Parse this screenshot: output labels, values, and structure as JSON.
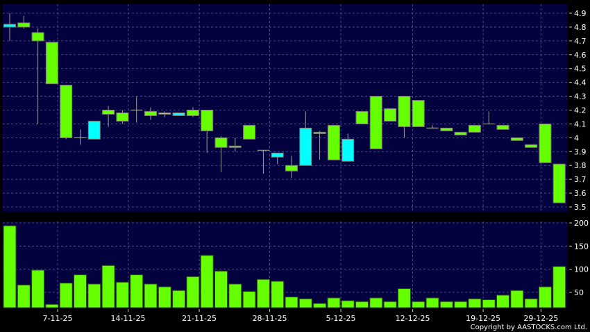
{
  "chart_data": [
    {
      "type": "candlestick",
      "ylim": [
        3.5,
        4.9
      ],
      "yticks": [
        3.5,
        3.6,
        3.7,
        3.8,
        3.9,
        4,
        4.1,
        4.2,
        4.3,
        4.4,
        4.5,
        4.6,
        4.7,
        4.8,
        4.9
      ],
      "grid": true,
      "colors": {
        "up": "#00ffff",
        "down": "#66ff00",
        "background": "#03023f",
        "wick": "#a0a0a0"
      },
      "ohlc": [
        [
          4.8,
          4.9,
          4.7,
          4.82
        ],
        [
          4.83,
          4.88,
          4.79,
          4.8
        ],
        [
          4.76,
          4.79,
          4.1,
          4.7
        ],
        [
          4.69,
          4.69,
          4.39,
          4.39
        ],
        [
          4.38,
          4.38,
          3.99,
          4.0
        ],
        [
          4.0,
          4.06,
          3.95,
          4.0
        ],
        [
          3.99,
          4.12,
          3.99,
          4.12
        ],
        [
          4.2,
          4.23,
          4.08,
          4.17
        ],
        [
          4.18,
          4.2,
          4.1,
          4.12
        ],
        [
          4.2,
          4.3,
          4.11,
          4.2
        ],
        [
          4.19,
          4.22,
          4.13,
          4.16
        ],
        [
          4.18,
          4.19,
          4.15,
          4.17
        ],
        [
          4.16,
          4.18,
          4.16,
          4.18
        ],
        [
          4.2,
          4.22,
          4.15,
          4.16
        ],
        [
          4.2,
          4.2,
          3.89,
          4.05
        ],
        [
          4.0,
          4.01,
          3.75,
          3.93
        ],
        [
          3.94,
          4.0,
          3.9,
          3.93
        ],
        [
          4.09,
          4.09,
          3.99,
          3.99
        ],
        [
          3.91,
          3.91,
          3.74,
          3.91
        ],
        [
          3.86,
          3.89,
          3.81,
          3.89
        ],
        [
          3.8,
          3.87,
          3.71,
          3.76
        ],
        [
          3.8,
          4.19,
          3.8,
          4.07
        ],
        [
          4.04,
          4.05,
          3.84,
          4.03
        ],
        [
          4.09,
          4.09,
          3.84,
          3.84
        ],
        [
          3.83,
          4.03,
          3.83,
          3.99
        ],
        [
          4.19,
          4.19,
          4.1,
          4.1
        ],
        [
          4.3,
          4.3,
          3.92,
          3.92
        ],
        [
          4.21,
          4.21,
          4.12,
          4.12
        ],
        [
          4.3,
          4.3,
          4.0,
          4.08
        ],
        [
          4.27,
          4.27,
          4.08,
          4.08
        ],
        [
          4.07,
          4.09,
          4.07,
          4.07
        ],
        [
          4.07,
          4.07,
          4.05,
          4.05
        ],
        [
          4.04,
          4.04,
          4.02,
          4.02
        ],
        [
          4.09,
          4.09,
          4.04,
          4.04
        ],
        [
          4.1,
          4.19,
          4.1,
          4.1
        ],
        [
          4.09,
          4.09,
          4.06,
          4.06
        ],
        [
          4.0,
          4.0,
          3.98,
          3.98
        ],
        [
          3.95,
          3.95,
          3.93,
          3.93
        ],
        [
          4.1,
          4.1,
          3.82,
          3.82
        ],
        [
          3.81,
          3.81,
          3.53,
          3.53
        ]
      ]
    },
    {
      "type": "bar",
      "ylim": [
        16.5,
        200
      ],
      "yticks": [
        50,
        100,
        150,
        200
      ],
      "grid": true,
      "colors": {
        "bar": "#66ff00"
      },
      "values": [
        194,
        66,
        98,
        24,
        70,
        88,
        68,
        108,
        72,
        88,
        68,
        62,
        54,
        84,
        130,
        96,
        68,
        52,
        78,
        74,
        40,
        36,
        26,
        38,
        32,
        30,
        38,
        30,
        58,
        30,
        38,
        30,
        30,
        36,
        34,
        44,
        54,
        36,
        62,
        106
      ]
    }
  ],
  "xticks": [
    {
      "label": "7-11-25",
      "at": 3.4
    },
    {
      "label": "14-11-25",
      "at": 8.4
    },
    {
      "label": "21-11-25",
      "at": 13.45
    },
    {
      "label": "28-11-25",
      "at": 18.45
    },
    {
      "label": "5-12-25",
      "at": 23.5
    },
    {
      "label": "12-12-25",
      "at": 28.6
    },
    {
      "label": "19-12-25",
      "at": 33.6
    },
    {
      "label": "29-12-25",
      "at": 37.7
    }
  ],
  "copyright": "Copyright by AASTOCKS.com Ltd."
}
